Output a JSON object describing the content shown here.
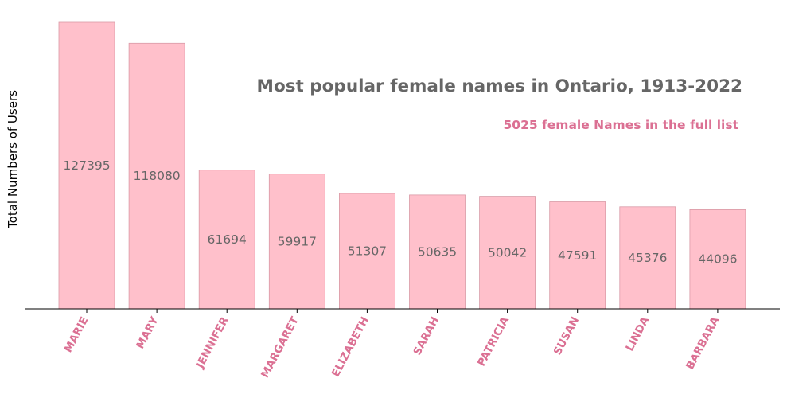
{
  "chart_data": {
    "type": "bar",
    "title": "Most popular female names in Ontario, 1913-2022",
    "subtitle": "5025 female Names in the full list",
    "xlabel": "",
    "ylabel": "Total Numbers of Users",
    "categories": [
      "MARIE",
      "MARY",
      "JENNIFER",
      "MARGARET",
      "ELIZABETH",
      "SARAH",
      "PATRICIA",
      "SUSAN",
      "LINDA",
      "BARBARA"
    ],
    "values": [
      127395,
      118080,
      61694,
      59917,
      51307,
      50635,
      50042,
      47591,
      45376,
      44096
    ],
    "ylim": [
      0,
      127395
    ],
    "grid": false,
    "y_ticks_visible": false,
    "colors": {
      "bar_fill": "#ffc0cb",
      "bar_edge": "#d99aa6",
      "value_label": "#666666",
      "title": "#666666",
      "subtitle": "#db7093",
      "tick_label": "#db7093",
      "axis": "#000000"
    }
  }
}
